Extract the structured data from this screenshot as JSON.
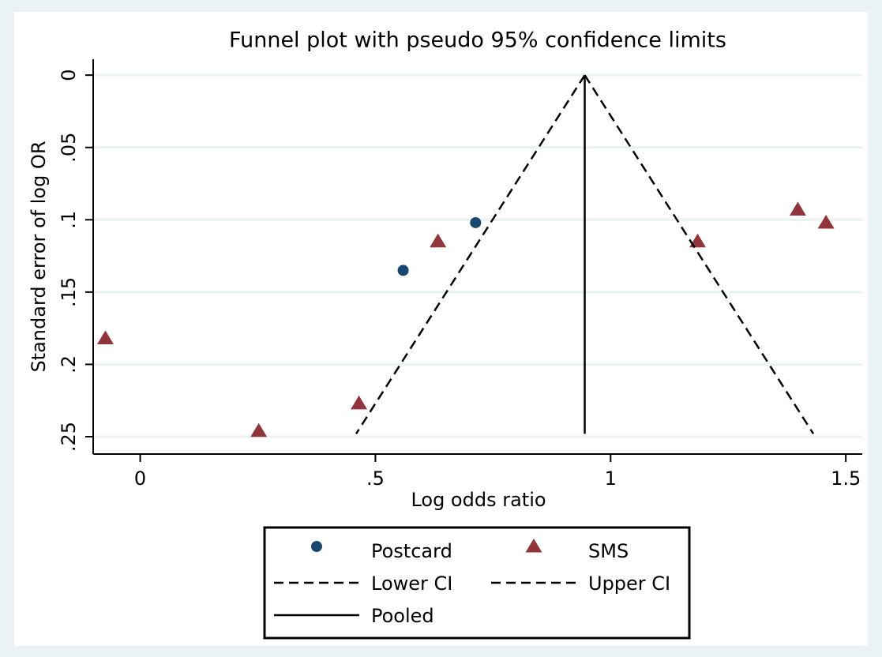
{
  "chart_data": {
    "type": "scatter",
    "title": "Funnel plot with pseudo 95% confidence limits",
    "xlabel": "Log odds ratio",
    "ylabel": "Standard error of log OR",
    "xlim": [
      -0.1,
      1.535
    ],
    "ylim": [
      -0.011,
      0.262
    ],
    "y_reversed": true,
    "xticks": [
      0,
      {
        "value": 0.5,
        "label": ".5"
      },
      1,
      1.5
    ],
    "yticks": [
      0,
      {
        "value": 0.05,
        "label": ".05"
      },
      {
        "value": 0.1,
        "label": ".1"
      },
      {
        "value": 0.15,
        "label": ".15"
      },
      {
        "value": 0.2,
        "label": ".2"
      },
      {
        "value": 0.25,
        "label": ".25"
      }
    ],
    "grid": true,
    "legend": "bottom",
    "series": [
      {
        "name": "Postcard",
        "color": "#1a476f",
        "style": "circle",
        "x": [
          0.559,
          0.713
        ],
        "values": [
          0.135,
          0.102
        ]
      },
      {
        "name": "SMS",
        "color": "#90353b",
        "style": "triangle",
        "x": [
          -0.074,
          0.252,
          0.465,
          0.633,
          1.185,
          1.398,
          1.458
        ],
        "values": [
          0.182,
          0.246,
          0.227,
          0.115,
          0.115,
          0.093,
          0.102
        ]
      },
      {
        "name": "Lower CI",
        "color": "#000000",
        "style": "dashed",
        "x": [
          0.945,
          0.459
        ],
        "values": [
          0,
          0.248
        ]
      },
      {
        "name": "Upper CI",
        "color": "#000000",
        "style": "dashed",
        "x": [
          0.945,
          1.431
        ],
        "values": [
          0,
          0.248
        ]
      },
      {
        "name": "Pooled",
        "color": "#000000",
        "style": "solid",
        "x": [
          0.945,
          0.945
        ],
        "values": [
          0,
          0.248
        ]
      }
    ]
  }
}
